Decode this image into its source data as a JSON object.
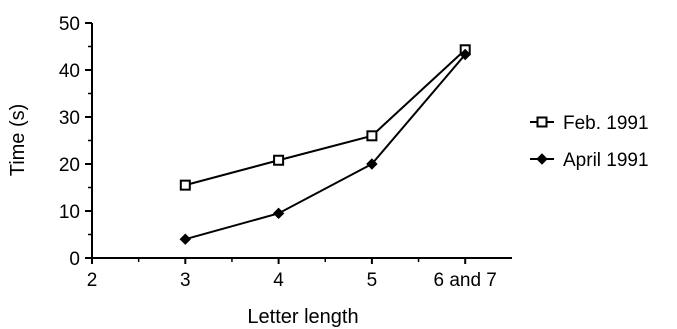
{
  "chart_data": {
    "type": "line",
    "title": "",
    "xlabel": "Letter length",
    "ylabel": "Time (s)",
    "x_categories": [
      "2",
      "3",
      "4",
      "5",
      "6 and 7"
    ],
    "ylim": [
      0,
      50
    ],
    "y_ticks": [
      "0",
      "10",
      "20",
      "30",
      "40",
      "50"
    ],
    "grid": false,
    "legend_position": "right",
    "series": [
      {
        "name": "Feb. 1991",
        "marker": "open-square",
        "points": [
          {
            "x": "3",
            "y": 15.5
          },
          {
            "x": "4",
            "y": 20.8
          },
          {
            "x": "5",
            "y": 26.0
          },
          {
            "x": "6 and 7",
            "y": 44.3
          }
        ]
      },
      {
        "name": "April 1991",
        "marker": "filled-diamond",
        "points": [
          {
            "x": "3",
            "y": 4.0
          },
          {
            "x": "4",
            "y": 9.5
          },
          {
            "x": "5",
            "y": 20.0
          },
          {
            "x": "6 and 7",
            "y": 43.3
          }
        ]
      }
    ]
  }
}
